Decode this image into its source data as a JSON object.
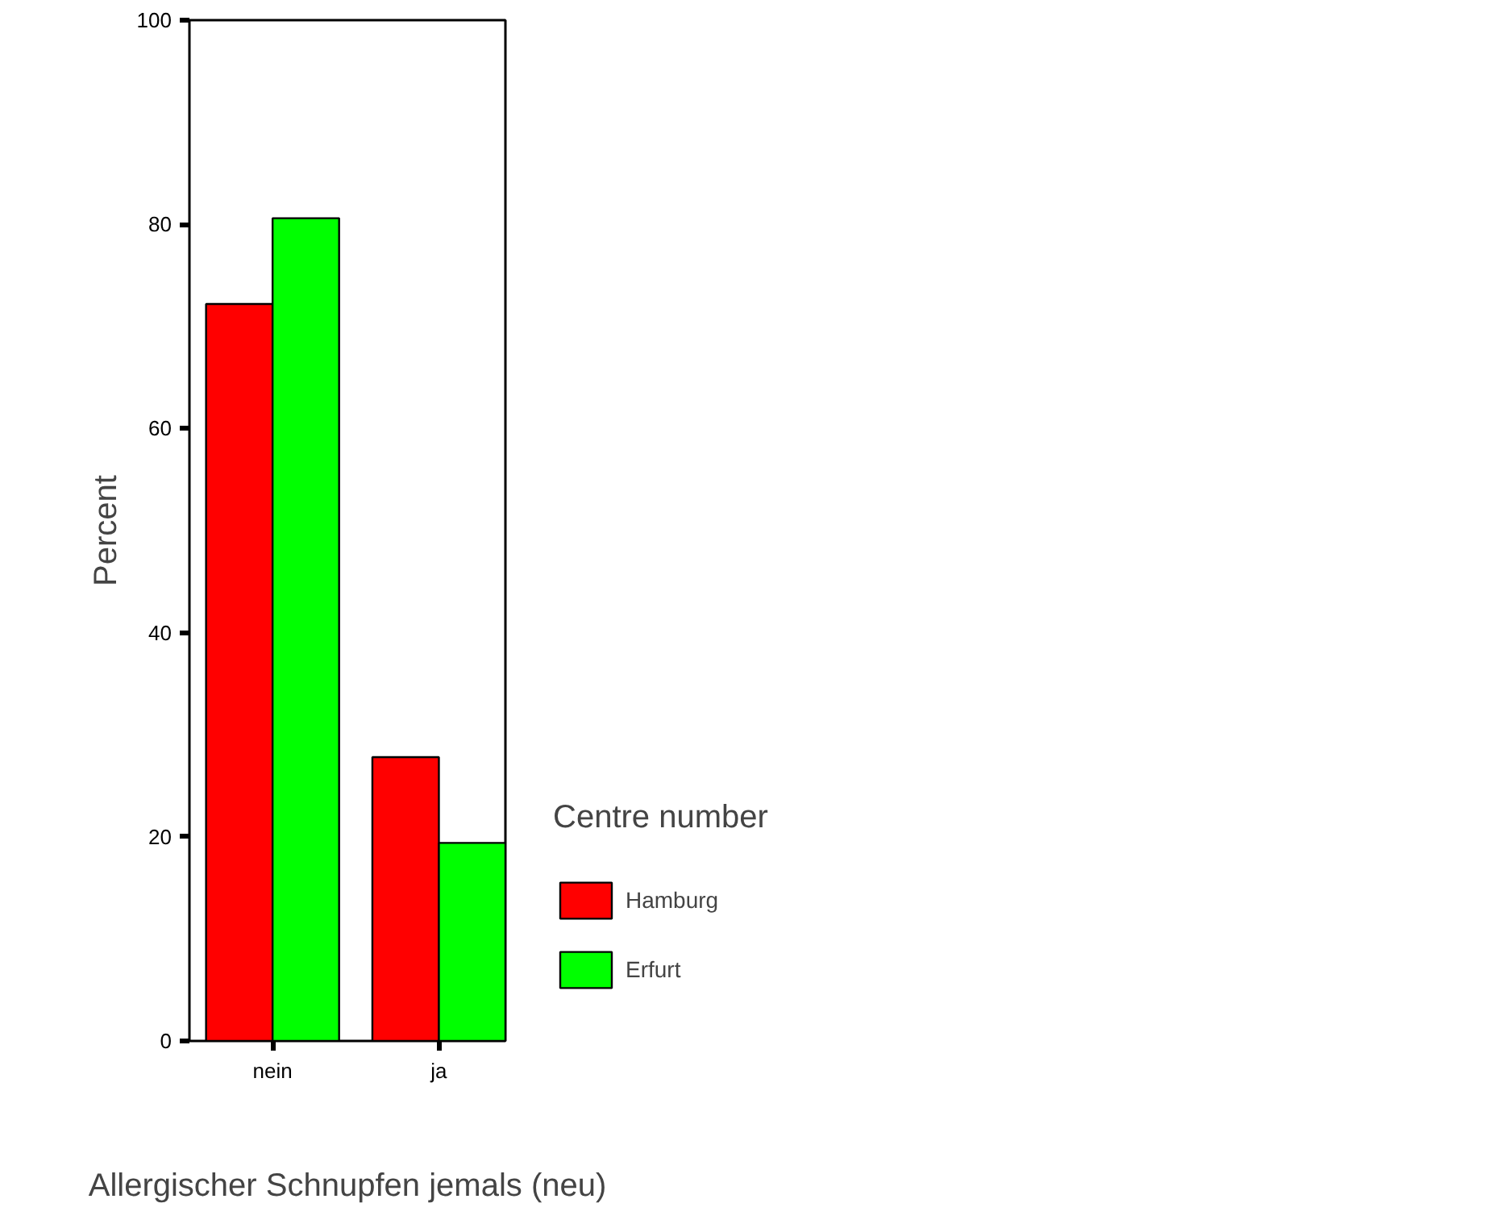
{
  "chart_data": {
    "type": "bar",
    "categories": [
      "nein",
      "ja"
    ],
    "xlabel": "Allergischer Schnupfen jemals (neu)",
    "ylabel": "Percent",
    "legend_title": "Centre number",
    "ylim": [
      0,
      100
    ],
    "yticks": [
      0,
      20,
      40,
      60,
      80,
      100
    ],
    "grid": false,
    "legend": "right",
    "series": [
      {
        "name": "Hamburg",
        "color": "#ff0000",
        "values": [
          72.2,
          27.8
        ]
      },
      {
        "name": "Erfurt",
        "color": "#00ff00",
        "values": [
          80.6,
          19.4
        ]
      }
    ]
  }
}
